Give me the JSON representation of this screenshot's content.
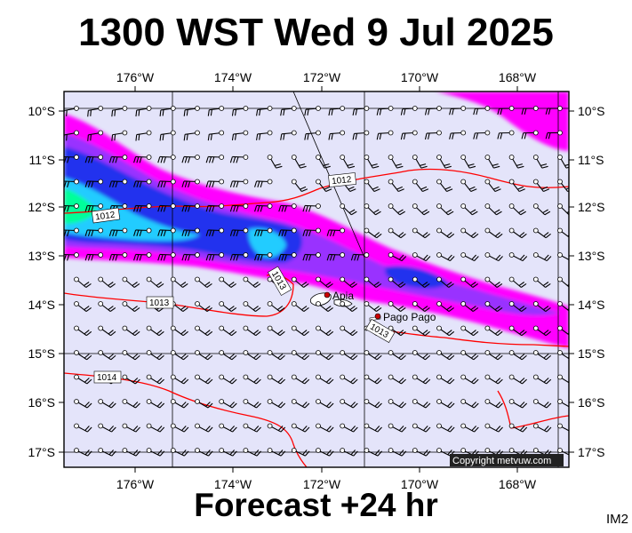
{
  "title": "1300 WST Wed 9 Jul 2025",
  "footer": "Forecast +24 hr",
  "image_code": "IM2",
  "copyright": "Copyright metvuw.com",
  "map": {
    "lon_range": [
      -177.3,
      -166.7
    ],
    "lat_range": [
      -17.3,
      -9.7
    ],
    "lon_ticks": [
      "176°W",
      "174°W",
      "172°W",
      "170°W",
      "168°W"
    ],
    "lat_ticks": [
      "10°S",
      "11°S",
      "12°S",
      "13°S",
      "14°S",
      "15°S",
      "16°S",
      "17°S"
    ],
    "places": [
      {
        "name": "Apia",
        "lon": -171.77,
        "lat": -13.83
      },
      {
        "name": "Pago Pago",
        "lon": -170.7,
        "lat": -14.28
      }
    ],
    "isobar_labels": [
      "1012",
      "1012",
      "1013",
      "1013",
      "1013",
      "1014"
    ],
    "colors": {
      "background": "#e4e4fa",
      "magenta": "#ff00ff",
      "violet": "#9933ff",
      "blue": "#2233ee",
      "cyan": "#22ccff",
      "green": "#00ff99",
      "isobar": "#ff0000"
    }
  }
}
